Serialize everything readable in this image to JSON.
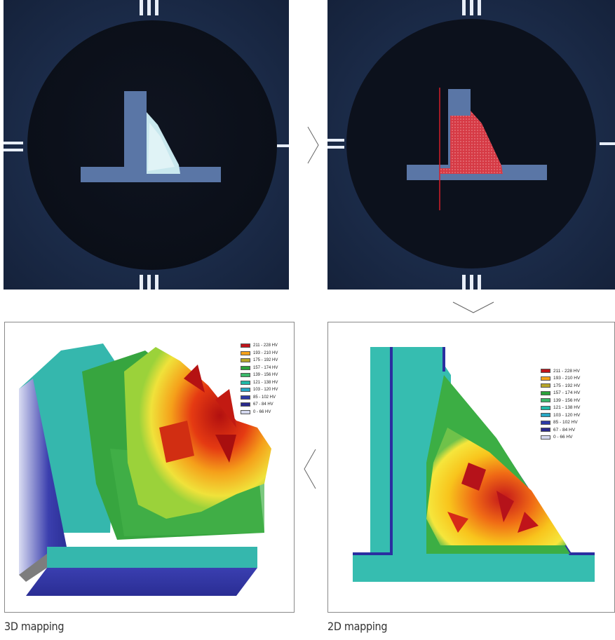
{
  "captions": {
    "left": "3D mapping",
    "right": "2D mapping"
  },
  "legend": {
    "bands": [
      {
        "label": "211 - 228 HV",
        "color": "#c0141a"
      },
      {
        "label": "193 - 210 HV",
        "color": "#f5a21a"
      },
      {
        "label": "175 - 192 HV",
        "color": "#b7a62a"
      },
      {
        "label": "157 - 174 HV",
        "color": "#2aa13a"
      },
      {
        "label": "139 - 156 HV",
        "color": "#3bb86a"
      },
      {
        "label": "121 - 138 HV",
        "color": "#20b9a7"
      },
      {
        "label": "103 - 120 HV",
        "color": "#27a6c4"
      },
      {
        "label": "85 - 102 HV",
        "color": "#2c3aa6"
      },
      {
        "label": "67 - 84 HV",
        "color": "#2a2a8c"
      },
      {
        "label": "0 - 66 HV",
        "color": "#d4d8ee"
      }
    ]
  },
  "icons": {
    "right_arrow": "chevron-right-icon",
    "down_arrow": "chevron-down-icon",
    "left_arrow": "chevron-left-icon"
  }
}
